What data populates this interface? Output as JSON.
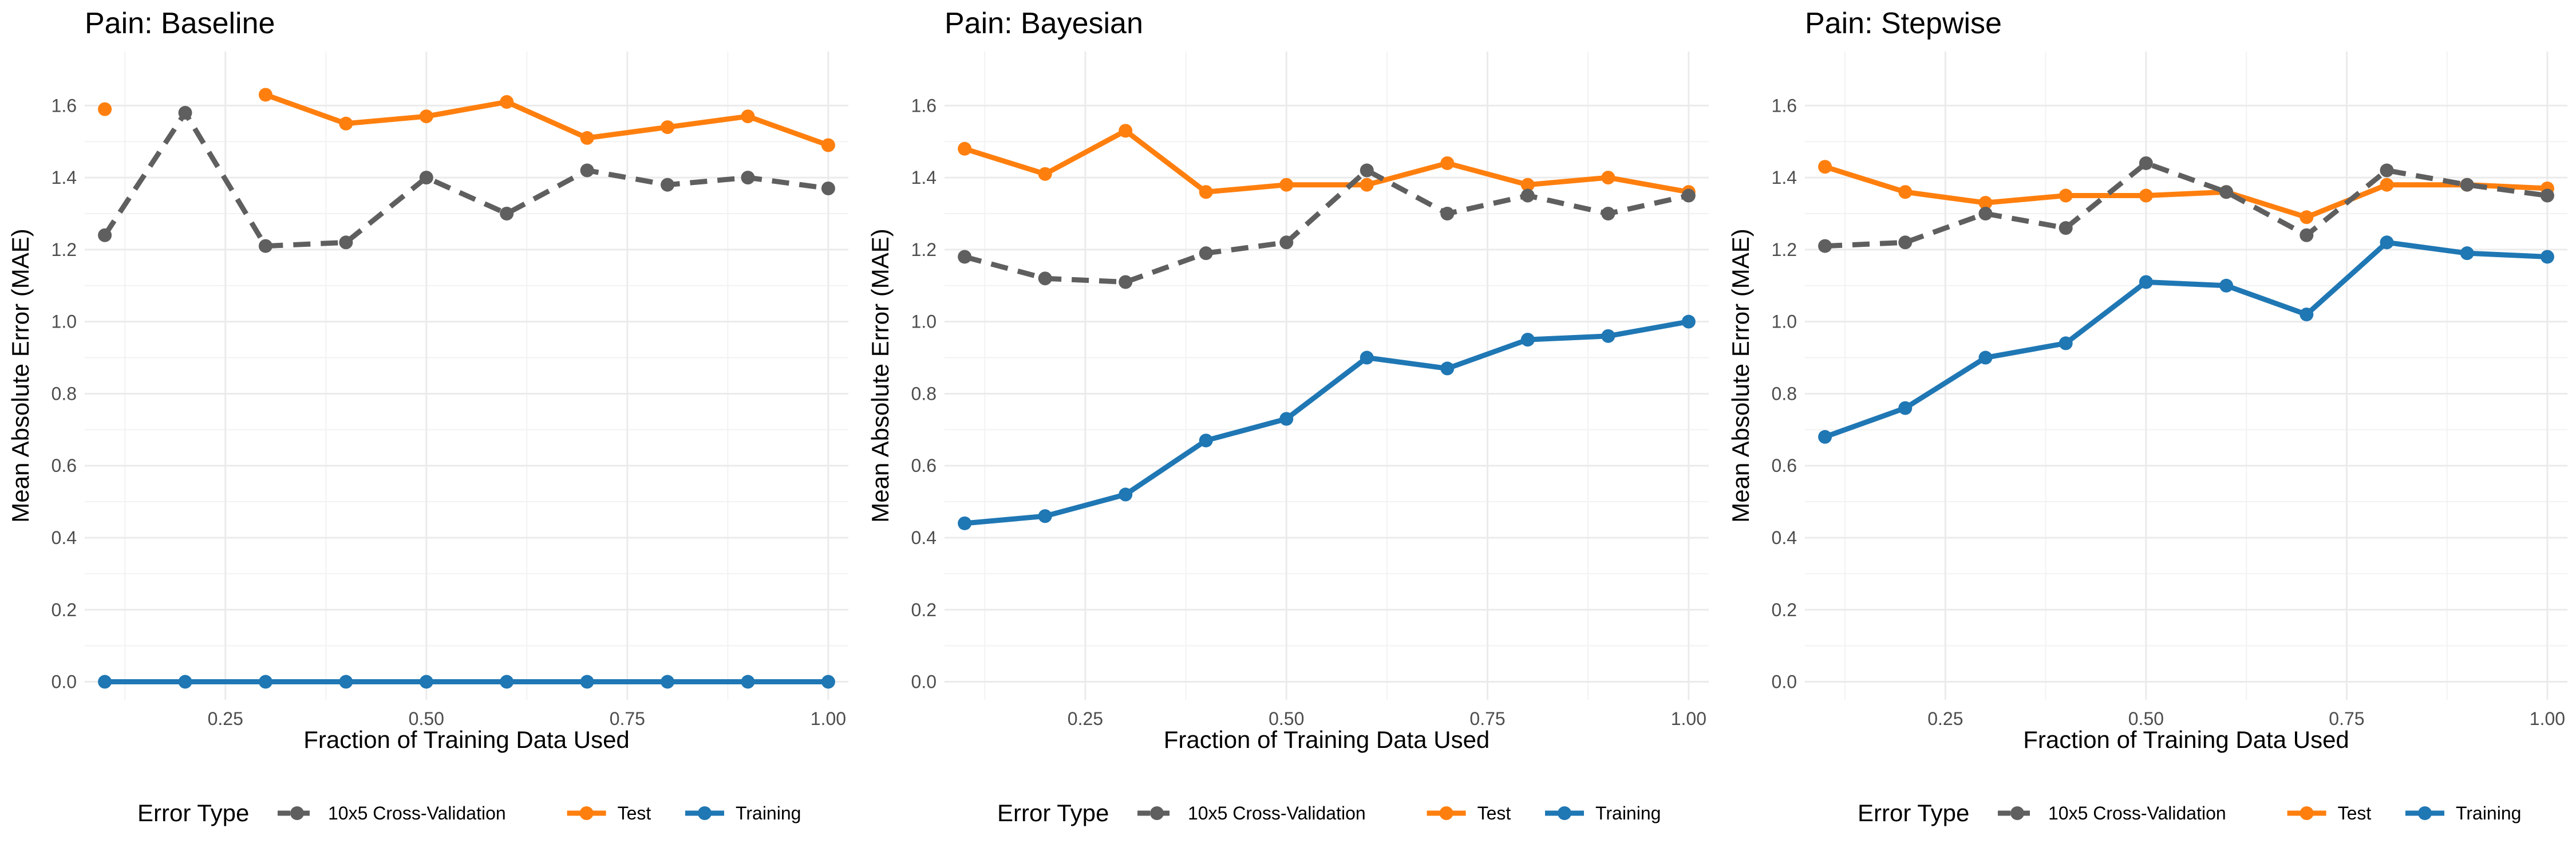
{
  "figure": {
    "panels": [
      {
        "title": "Pain: Baseline"
      },
      {
        "title": "Pain: Bayesian"
      },
      {
        "title": "Pain: Stepwise"
      }
    ]
  },
  "legend": {
    "title": "Error Type",
    "entries": [
      {
        "label": "10x5 Cross-Validation",
        "color": "#5f5f5f",
        "dash": true
      },
      {
        "label": "Test",
        "color": "#ff7f0e",
        "dash": false
      },
      {
        "label": "Training",
        "color": "#1f77b4",
        "dash": false
      }
    ]
  },
  "chart_data": [
    {
      "type": "line",
      "title": "Pain: Baseline",
      "xlabel": "Fraction of Training Data Used",
      "ylabel": "Mean Absolute Error (MAE)",
      "x": [
        0.1,
        0.2,
        0.3,
        0.4,
        0.5,
        0.6,
        0.7,
        0.8,
        0.9,
        1.0
      ],
      "xlim": [
        0.075,
        1.025
      ],
      "ylim": [
        -0.05,
        1.75
      ],
      "xticks": [
        0.25,
        0.5,
        0.75,
        1.0
      ],
      "xtick_labels": [
        "0.25",
        "0.50",
        "0.75",
        "1.00"
      ],
      "yticks": [
        0.0,
        0.2,
        0.4,
        0.6,
        0.8,
        1.0,
        1.2,
        1.4,
        1.6
      ],
      "ytick_labels": [
        "0.0",
        "0.2",
        "0.4",
        "0.6",
        "0.8",
        "1.0",
        "1.2",
        "1.4",
        "1.6"
      ],
      "grid": true,
      "legend": "bottom",
      "series": [
        {
          "name": "10x5 Cross-Validation",
          "values": [
            1.24,
            1.58,
            1.21,
            1.22,
            1.4,
            1.3,
            1.42,
            1.38,
            1.4,
            1.37
          ]
        },
        {
          "name": "Test",
          "values": [
            1.59,
            null,
            1.63,
            1.55,
            1.57,
            1.61,
            1.51,
            1.54,
            1.57,
            1.49
          ]
        },
        {
          "name": "Training",
          "values": [
            0.0,
            0.0,
            0.0,
            0.0,
            0.0,
            0.0,
            0.0,
            0.0,
            0.0,
            0.0
          ]
        }
      ]
    },
    {
      "type": "line",
      "title": "Pain: Bayesian",
      "xlabel": "Fraction of Training Data Used",
      "ylabel": "Mean Absolute Error (MAE)",
      "x": [
        0.1,
        0.2,
        0.3,
        0.4,
        0.5,
        0.6,
        0.7,
        0.8,
        0.9,
        1.0
      ],
      "xlim": [
        0.075,
        1.025
      ],
      "ylim": [
        -0.05,
        1.75
      ],
      "xticks": [
        0.25,
        0.5,
        0.75,
        1.0
      ],
      "xtick_labels": [
        "0.25",
        "0.50",
        "0.75",
        "1.00"
      ],
      "yticks": [
        0.0,
        0.2,
        0.4,
        0.6,
        0.8,
        1.0,
        1.2,
        1.4,
        1.6
      ],
      "ytick_labels": [
        "0.0",
        "0.2",
        "0.4",
        "0.6",
        "0.8",
        "1.0",
        "1.2",
        "1.4",
        "1.6"
      ],
      "grid": true,
      "legend": "bottom",
      "series": [
        {
          "name": "10x5 Cross-Validation",
          "values": [
            1.18,
            1.12,
            1.11,
            1.19,
            1.22,
            1.42,
            1.3,
            1.35,
            1.3,
            1.35
          ]
        },
        {
          "name": "Test",
          "values": [
            1.48,
            1.41,
            1.53,
            1.36,
            1.38,
            1.38,
            1.44,
            1.38,
            1.4,
            1.36
          ]
        },
        {
          "name": "Training",
          "values": [
            0.44,
            0.46,
            0.52,
            0.67,
            0.73,
            0.9,
            0.87,
            0.95,
            0.96,
            1.0
          ]
        }
      ]
    },
    {
      "type": "line",
      "title": "Pain: Stepwise",
      "xlabel": "Fraction of Training Data Used",
      "ylabel": "Mean Absolute Error (MAE)",
      "x": [
        0.1,
        0.2,
        0.3,
        0.4,
        0.5,
        0.6,
        0.7,
        0.8,
        0.9,
        1.0
      ],
      "xlim": [
        0.075,
        1.025
      ],
      "ylim": [
        -0.05,
        1.75
      ],
      "xticks": [
        0.25,
        0.5,
        0.75,
        1.0
      ],
      "xtick_labels": [
        "0.25",
        "0.50",
        "0.75",
        "1.00"
      ],
      "yticks": [
        0.0,
        0.2,
        0.4,
        0.6,
        0.8,
        1.0,
        1.2,
        1.4,
        1.6
      ],
      "ytick_labels": [
        "0.0",
        "0.2",
        "0.4",
        "0.6",
        "0.8",
        "1.0",
        "1.2",
        "1.4",
        "1.6"
      ],
      "grid": true,
      "legend": "bottom",
      "series": [
        {
          "name": "10x5 Cross-Validation",
          "values": [
            1.21,
            1.22,
            1.3,
            1.26,
            1.44,
            1.36,
            1.24,
            1.42,
            1.38,
            1.35
          ]
        },
        {
          "name": "Test",
          "values": [
            1.43,
            1.36,
            1.33,
            1.35,
            1.35,
            1.36,
            1.29,
            1.38,
            1.38,
            1.37
          ]
        },
        {
          "name": "Training",
          "values": [
            0.68,
            0.76,
            0.9,
            0.94,
            1.11,
            1.1,
            1.02,
            1.22,
            1.19,
            1.18
          ]
        }
      ]
    }
  ]
}
